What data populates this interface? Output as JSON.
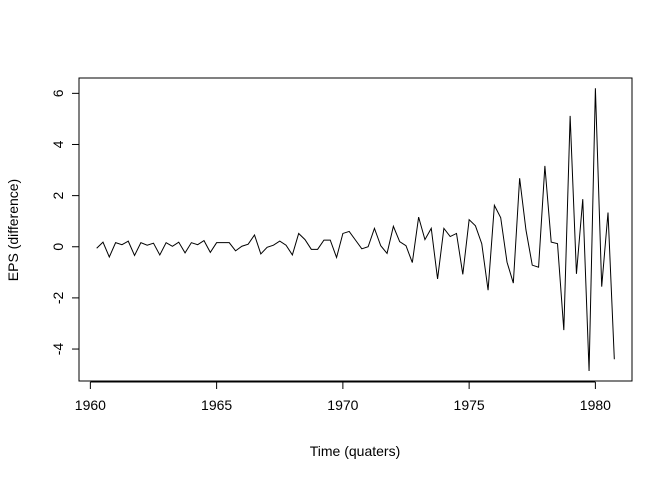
{
  "chart_data": {
    "type": "line",
    "title": "",
    "xlabel": "Time (quaters)",
    "ylabel": "EPS (difference)",
    "xlim": [
      1959.55,
      1981.45
    ],
    "ylim": [
      -5.25,
      6.6
    ],
    "x_start": 1960.25,
    "x_step": 0.25,
    "xticks": [
      1960,
      1965,
      1970,
      1975,
      1980
    ],
    "yticks": [
      -4,
      -2,
      0,
      2,
      4,
      6
    ],
    "xtick_labels": [
      "1960",
      "1965",
      "1970",
      "1975",
      "1980"
    ],
    "ytick_labels": [
      "-4",
      "-2",
      "0",
      "2",
      "4",
      "6"
    ],
    "grid": false,
    "legend": "none",
    "series": [
      {
        "color": "#000000",
        "values": [
          -0.06,
          0.18,
          -0.4,
          0.16,
          0.08,
          0.22,
          -0.34,
          0.16,
          0.06,
          0.14,
          -0.32,
          0.16,
          0.02,
          0.18,
          -0.24,
          0.16,
          0.08,
          0.24,
          -0.22,
          0.16,
          0.16,
          0.16,
          -0.16,
          0.02,
          0.1,
          0.46,
          -0.28,
          -0.02,
          0.06,
          0.22,
          0.06,
          -0.32,
          0.52,
          0.28,
          -0.1,
          -0.1,
          0.26,
          0.26,
          -0.42,
          0.52,
          0.6,
          0.26,
          -0.08,
          0.0,
          0.72,
          0.04,
          -0.26,
          0.8,
          0.2,
          0.04,
          -0.62,
          1.16,
          0.28,
          0.72,
          -1.26,
          0.72,
          0.4,
          0.52,
          -1.08,
          1.06,
          0.82,
          0.12,
          -1.7,
          1.62,
          1.14,
          -0.6,
          -1.42,
          2.68,
          0.66,
          -0.72,
          -0.8,
          3.16,
          0.18,
          0.12,
          -3.26,
          5.12,
          -1.06,
          1.86,
          -4.86,
          6.2,
          -1.56,
          1.34,
          -4.4
        ]
      }
    ]
  }
}
